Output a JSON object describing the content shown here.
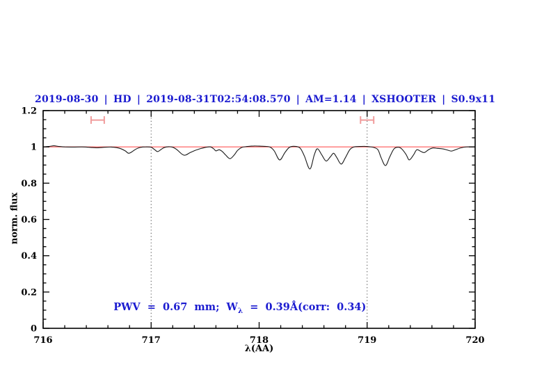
{
  "title": {
    "text": "2019-08-30 | HD | 2019-08-31T02:54:08.570 | AM=1.14 | XSHOOTER | S0.9x11",
    "color": "#1b1bd0"
  },
  "annotation": {
    "prefix": "PWV  =  0.67  mm;  W",
    "sub": "λ",
    "suffix": "  =  0.39Å(corr:  0.34)",
    "color": "#1b1bd0"
  },
  "colors": {
    "blue_text": "#1b1bd0",
    "spectrum_line": "#1a1a1a",
    "continuum_line": "#ff5555",
    "range_marker": "#f09c9c",
    "dotted_guide": "#444444",
    "axis": "#000000"
  },
  "chart_data": {
    "type": "line",
    "title": "2019-08-30 | HD | 2019-08-31T02:54:08.570 | AM=1.14 | XSHOOTER | S0.9x11",
    "xlabel": "λ(AA)",
    "ylabel": "norm. flux",
    "xlim": [
      716,
      720
    ],
    "ylim": [
      0,
      1.2
    ],
    "x_ticks": [
      716,
      717,
      718,
      719,
      720
    ],
    "x_tick_labels": [
      "716",
      "717",
      "718",
      "719",
      "720"
    ],
    "x_minor_step": 0.2,
    "y_ticks": [
      0,
      0.2,
      0.4,
      0.6,
      0.8,
      1,
      1.2
    ],
    "y_tick_labels": [
      "0",
      "0.2",
      "0.4",
      "0.6",
      "0.8",
      "1",
      "1.2"
    ],
    "y_minor_step": 0.05,
    "grid": false,
    "legend": "none",
    "vlines": {
      "x": [
        717,
        719
      ],
      "style": "dotted"
    },
    "continuum": {
      "y": 1.0
    },
    "range_markers": [
      {
        "x_center": 716.505,
        "x_half_width": 0.061,
        "y": 1.148
      },
      {
        "x_center": 719.0,
        "x_half_width": 0.061,
        "y": 1.148
      }
    ],
    "series": [
      {
        "name": "observed-telluric-spectrum",
        "points": [
          [
            716.0,
            1.0
          ],
          [
            716.06,
            1.003
          ],
          [
            716.1,
            1.006
          ],
          [
            716.14,
            1.003
          ],
          [
            716.2,
            1.0
          ],
          [
            716.28,
            0.999
          ],
          [
            716.36,
            1.0
          ],
          [
            716.44,
            0.997
          ],
          [
            716.5,
            0.995
          ],
          [
            716.57,
            0.998
          ],
          [
            716.63,
            0.999
          ],
          [
            716.68,
            0.996
          ],
          [
            716.72,
            0.99
          ],
          [
            716.76,
            0.978
          ],
          [
            716.79,
            0.965
          ],
          [
            716.82,
            0.972
          ],
          [
            716.86,
            0.988
          ],
          [
            716.9,
            0.997
          ],
          [
            716.95,
            1.0
          ],
          [
            717.0,
            0.998
          ],
          [
            717.03,
            0.986
          ],
          [
            717.06,
            0.974
          ],
          [
            717.09,
            0.985
          ],
          [
            717.12,
            0.996
          ],
          [
            717.16,
            1.001
          ],
          [
            717.2,
            0.998
          ],
          [
            717.24,
            0.984
          ],
          [
            717.29,
            0.958
          ],
          [
            717.32,
            0.955
          ],
          [
            717.36,
            0.968
          ],
          [
            717.41,
            0.981
          ],
          [
            717.46,
            0.991
          ],
          [
            717.51,
            0.998
          ],
          [
            717.55,
            1.0
          ],
          [
            717.58,
            0.989
          ],
          [
            717.6,
            0.978
          ],
          [
            717.63,
            0.984
          ],
          [
            717.66,
            0.974
          ],
          [
            717.69,
            0.955
          ],
          [
            717.73,
            0.935
          ],
          [
            717.77,
            0.956
          ],
          [
            717.8,
            0.98
          ],
          [
            717.84,
            0.997
          ],
          [
            717.89,
            1.002
          ],
          [
            717.95,
            1.005
          ],
          [
            718.0,
            1.004
          ],
          [
            718.05,
            1.003
          ],
          [
            718.1,
            0.999
          ],
          [
            718.14,
            0.978
          ],
          [
            718.19,
            0.928
          ],
          [
            718.24,
            0.97
          ],
          [
            718.28,
            0.997
          ],
          [
            718.33,
            1.003
          ],
          [
            718.38,
            0.993
          ],
          [
            718.42,
            0.948
          ],
          [
            718.47,
            0.878
          ],
          [
            718.51,
            0.955
          ],
          [
            718.54,
            0.99
          ],
          [
            718.58,
            0.956
          ],
          [
            718.62,
            0.922
          ],
          [
            718.66,
            0.946
          ],
          [
            718.69,
            0.965
          ],
          [
            718.72,
            0.94
          ],
          [
            718.76,
            0.905
          ],
          [
            718.8,
            0.942
          ],
          [
            718.84,
            0.985
          ],
          [
            718.88,
            1.0
          ],
          [
            718.93,
            1.002
          ],
          [
            718.98,
            1.003
          ],
          [
            719.02,
            1.001
          ],
          [
            719.06,
            0.997
          ],
          [
            719.1,
            0.984
          ],
          [
            719.13,
            0.94
          ],
          [
            719.17,
            0.897
          ],
          [
            719.21,
            0.946
          ],
          [
            719.25,
            0.99
          ],
          [
            719.29,
            0.998
          ],
          [
            719.32,
            0.989
          ],
          [
            719.36,
            0.959
          ],
          [
            719.39,
            0.928
          ],
          [
            719.43,
            0.956
          ],
          [
            719.46,
            0.984
          ],
          [
            719.5,
            0.974
          ],
          [
            719.53,
            0.969
          ],
          [
            719.57,
            0.985
          ],
          [
            719.61,
            0.994
          ],
          [
            719.65,
            0.992
          ],
          [
            719.69,
            0.99
          ],
          [
            719.73,
            0.985
          ],
          [
            719.78,
            0.977
          ],
          [
            719.82,
            0.985
          ],
          [
            719.87,
            0.995
          ],
          [
            719.92,
            1.0
          ],
          [
            720.0,
            1.0
          ]
        ]
      }
    ]
  }
}
